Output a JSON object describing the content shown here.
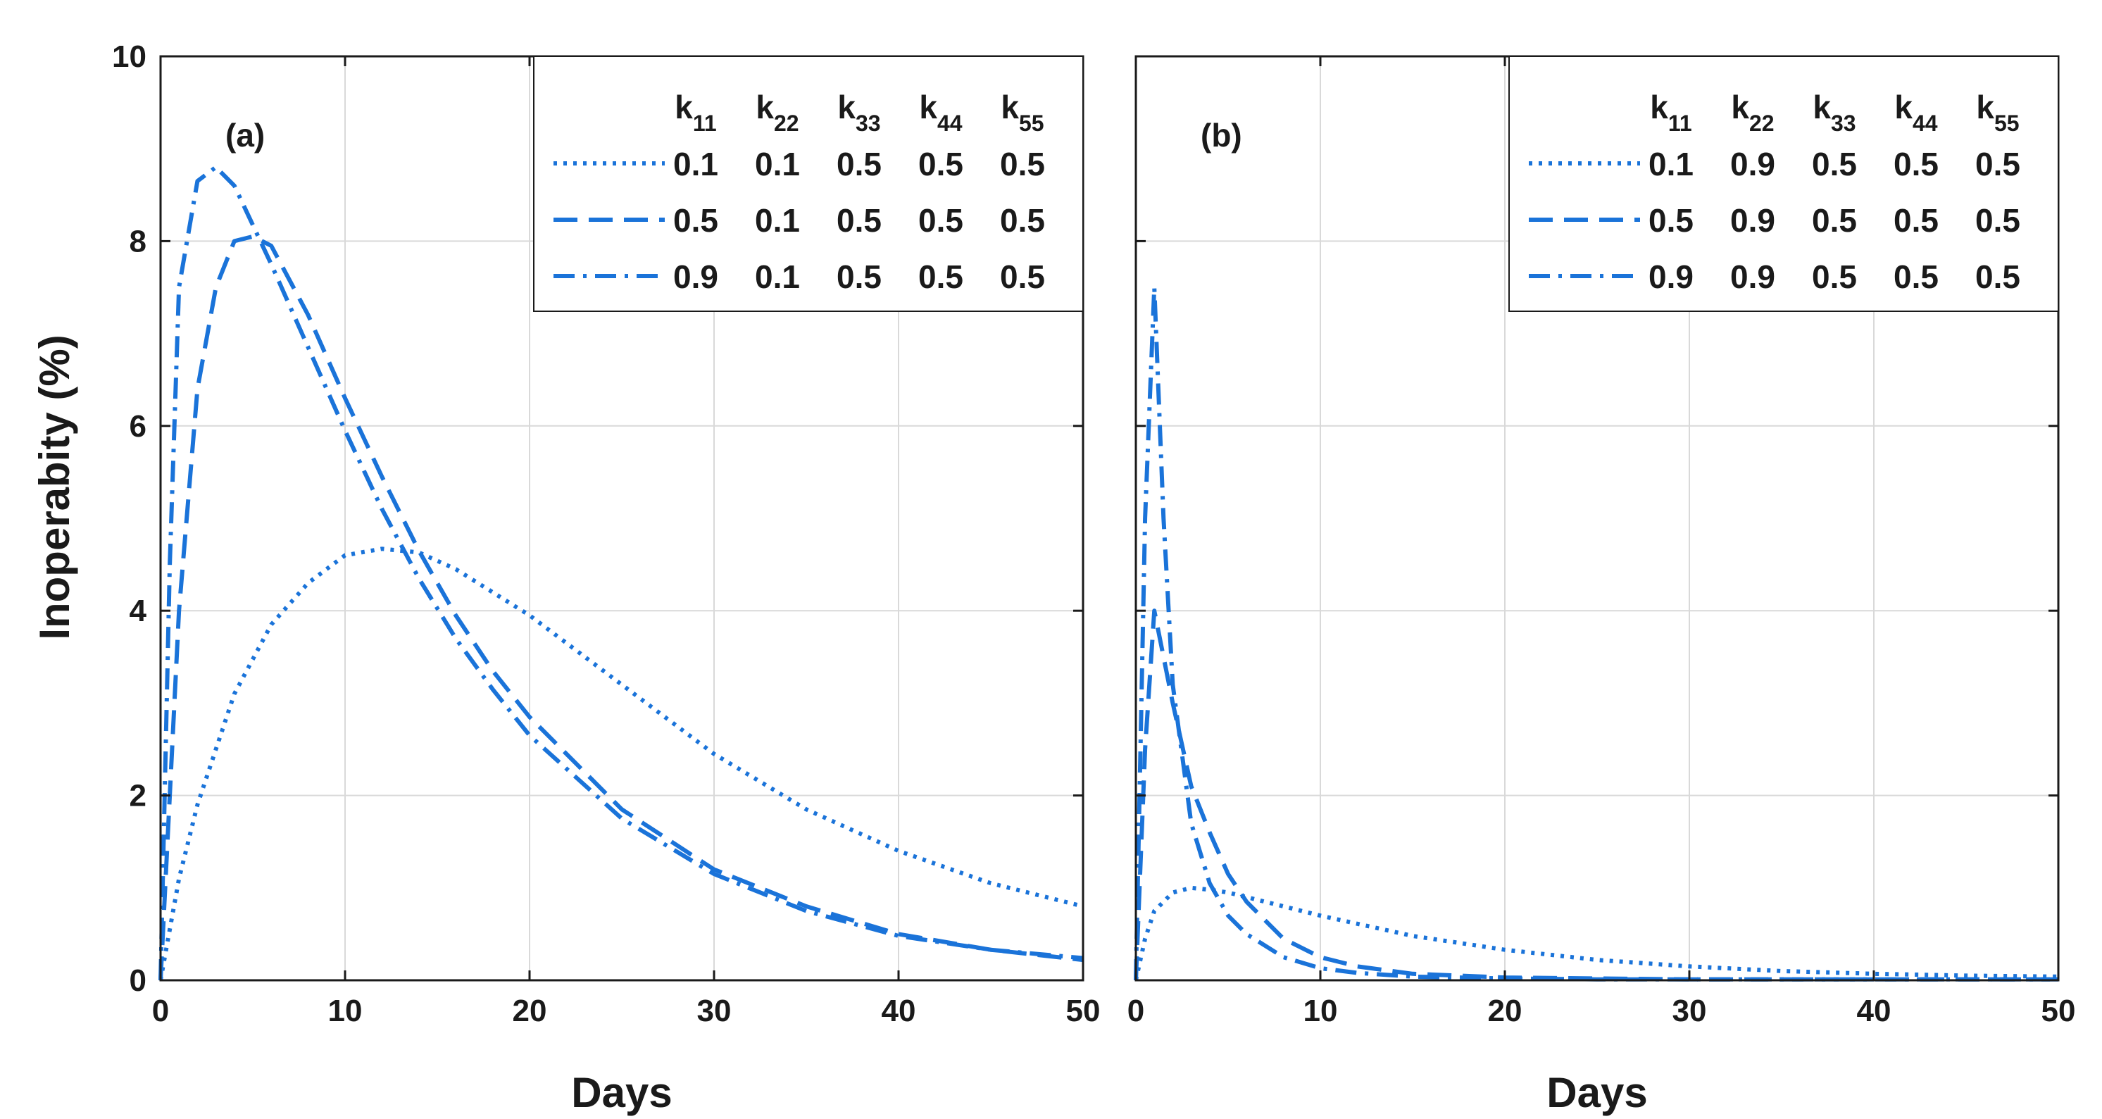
{
  "figure": {
    "ylabel": "Inoperabity (%)",
    "line_color": "#1a73d9",
    "grid_color": "#d9d9d9",
    "axis_color": "#1a1a1a"
  },
  "chart_data": [
    {
      "type": "line",
      "panel_label": "(a)",
      "xlabel": "Days",
      "ylabel": "Inoperabity (%)",
      "xlim": [
        0,
        50
      ],
      "ylim": [
        0,
        10
      ],
      "xticks": [
        0,
        10,
        20,
        30,
        40,
        50
      ],
      "yticks": [
        0,
        2,
        4,
        6,
        8,
        10
      ],
      "grid": true,
      "legend_position": "top-right",
      "legend_headers": [
        {
          "base": "k",
          "sub": "11"
        },
        {
          "base": "k",
          "sub": "22"
        },
        {
          "base": "k",
          "sub": "33"
        },
        {
          "base": "k",
          "sub": "44"
        },
        {
          "base": "k",
          "sub": "55"
        }
      ],
      "series": [
        {
          "name": "0.1 0.1 0.5 0.5 0.5",
          "style": "dotted",
          "params": [
            "0.1",
            "0.1",
            "0.5",
            "0.5",
            "0.5"
          ],
          "x": [
            0,
            1,
            2,
            4,
            6,
            8,
            10,
            12,
            14,
            16,
            18,
            20,
            25,
            30,
            35,
            40,
            45,
            50
          ],
          "y": [
            0,
            1.1,
            1.9,
            3.1,
            3.85,
            4.3,
            4.6,
            4.67,
            4.63,
            4.45,
            4.2,
            3.95,
            3.2,
            2.45,
            1.85,
            1.4,
            1.05,
            0.8
          ]
        },
        {
          "name": "0.5 0.1 0.5 0.5 0.5",
          "style": "dashed",
          "params": [
            "0.5",
            "0.1",
            "0.5",
            "0.5",
            "0.5"
          ],
          "x": [
            0,
            1,
            2,
            3,
            4,
            5,
            6,
            8,
            10,
            12,
            14,
            16,
            18,
            20,
            25,
            30,
            35,
            40,
            45,
            50
          ],
          "y": [
            0,
            4.0,
            6.4,
            7.5,
            8.0,
            8.05,
            7.95,
            7.2,
            6.3,
            5.45,
            4.65,
            3.95,
            3.35,
            2.85,
            1.85,
            1.2,
            0.8,
            0.5,
            0.33,
            0.22
          ]
        },
        {
          "name": "0.9 0.1 0.5 0.5 0.5",
          "style": "dashdot",
          "params": [
            "0.9",
            "0.1",
            "0.5",
            "0.5",
            "0.5"
          ],
          "x": [
            0,
            0.5,
            1,
            2,
            3,
            4,
            6,
            8,
            10,
            12,
            14,
            16,
            18,
            20,
            25,
            30,
            35,
            40,
            45,
            50
          ],
          "y": [
            0,
            4.5,
            7.5,
            8.65,
            8.8,
            8.6,
            7.75,
            6.85,
            5.95,
            5.1,
            4.35,
            3.7,
            3.15,
            2.65,
            1.75,
            1.15,
            0.75,
            0.48,
            0.33,
            0.24
          ]
        }
      ]
    },
    {
      "type": "line",
      "panel_label": "(b)",
      "xlabel": "Days",
      "ylabel": "",
      "xlim": [
        0,
        50
      ],
      "ylim": [
        0,
        10
      ],
      "xticks": [
        0,
        10,
        20,
        30,
        40,
        50
      ],
      "yticks": [
        0,
        2,
        4,
        6,
        8,
        10
      ],
      "grid": true,
      "legend_position": "top-right",
      "legend_headers": [
        {
          "base": "k",
          "sub": "11"
        },
        {
          "base": "k",
          "sub": "22"
        },
        {
          "base": "k",
          "sub": "33"
        },
        {
          "base": "k",
          "sub": "44"
        },
        {
          "base": "k",
          "sub": "55"
        }
      ],
      "series": [
        {
          "name": "0.1 0.9 0.5 0.5 0.5",
          "style": "dotted",
          "params": [
            "0.1",
            "0.9",
            "0.5",
            "0.5",
            "0.5"
          ],
          "x": [
            0,
            0.5,
            1,
            2,
            3,
            4,
            5,
            6,
            8,
            10,
            15,
            20,
            25,
            30,
            35,
            40,
            45,
            50
          ],
          "y": [
            0,
            0.45,
            0.75,
            0.95,
            1.0,
            0.98,
            0.95,
            0.9,
            0.8,
            0.7,
            0.48,
            0.33,
            0.22,
            0.15,
            0.1,
            0.07,
            0.05,
            0.04
          ]
        },
        {
          "name": "0.5 0.9 0.5 0.5 0.5",
          "style": "dashed",
          "params": [
            "0.5",
            "0.9",
            "0.5",
            "0.5",
            "0.5"
          ],
          "x": [
            0,
            0.5,
            1,
            2,
            3,
            4,
            5,
            6,
            8,
            10,
            12,
            15,
            20,
            25,
            30,
            40,
            50
          ],
          "y": [
            0,
            2.5,
            4.0,
            3.0,
            2.1,
            1.6,
            1.15,
            0.85,
            0.45,
            0.25,
            0.15,
            0.07,
            0.03,
            0.02,
            0.01,
            0.01,
            0.01
          ]
        },
        {
          "name": "0.9 0.9 0.5 0.5 0.5",
          "style": "dashdot",
          "params": [
            "0.9",
            "0.9",
            "0.5",
            "0.5",
            "0.5"
          ],
          "x": [
            0,
            0.5,
            1,
            1.5,
            2,
            3,
            4,
            5,
            6,
            8,
            10,
            12,
            15,
            20,
            25,
            30,
            40,
            50
          ],
          "y": [
            0,
            5.0,
            7.5,
            5.0,
            3.2,
            1.7,
            1.05,
            0.7,
            0.5,
            0.25,
            0.13,
            0.08,
            0.04,
            0.02,
            0.01,
            0.01,
            0.01,
            0.01
          ]
        }
      ]
    }
  ]
}
